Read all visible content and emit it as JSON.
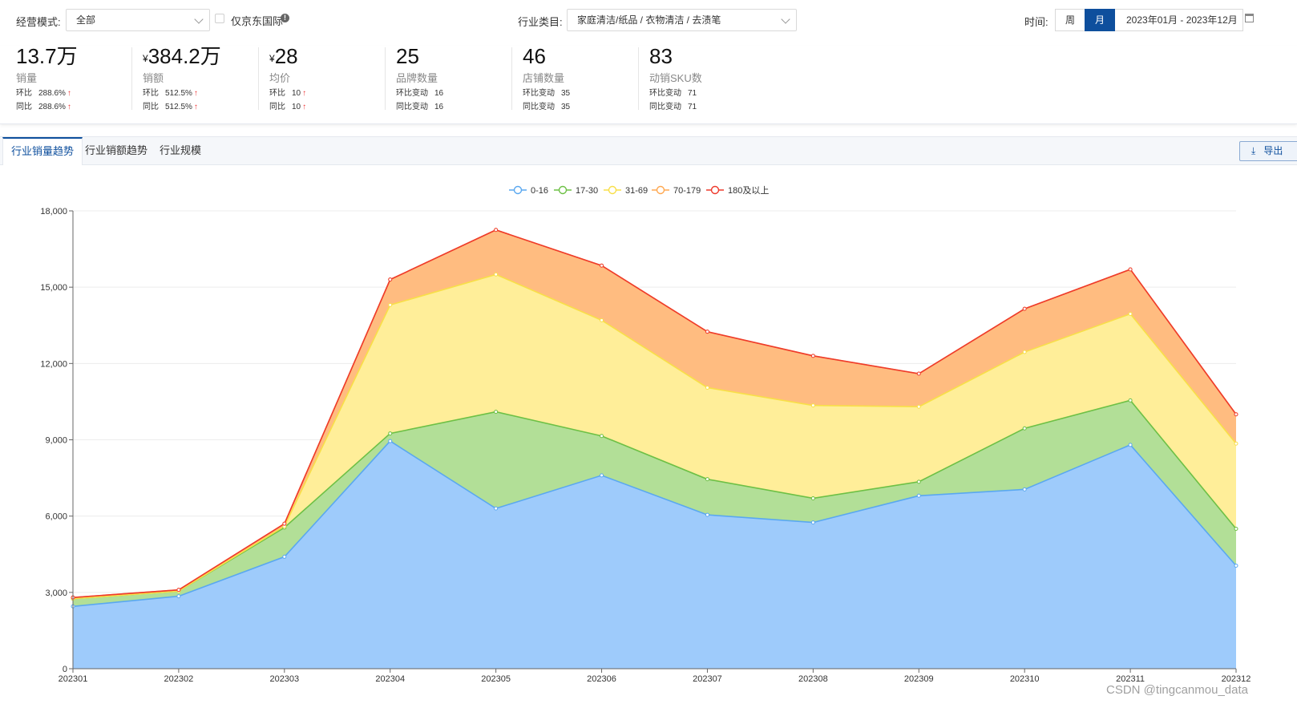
{
  "filters": {
    "mode_label": "经营模式:",
    "mode_value": "全部",
    "jd_intl_label": "仅京东国际",
    "industry_label": "行业类目:",
    "industry_value": "家庭清洁/纸品 / 衣物清洁 / 去渍笔",
    "time_label": "时间:",
    "week_label": "周",
    "month_label": "月",
    "date_range": "2023年01月 - 2023年12月"
  },
  "metrics": [
    {
      "value": "13.7万",
      "currency": "",
      "name": "销量",
      "row1_label": "环比",
      "row1_value": "288.6%",
      "row1_up": "↑",
      "row2_label": "同比",
      "row2_value": "288.6%",
      "row2_up": "↑"
    },
    {
      "value": "384.2万",
      "currency": "¥",
      "name": "销额",
      "row1_label": "环比",
      "row1_value": "512.5%",
      "row1_up": "↑",
      "row2_label": "同比",
      "row2_value": "512.5%",
      "row2_up": "↑"
    },
    {
      "value": "28",
      "currency": "¥",
      "name": "均价",
      "row1_label": "环比",
      "row1_value": "10",
      "row1_up": "↑",
      "row2_label": "同比",
      "row2_value": "10",
      "row2_up": "↑"
    },
    {
      "value": "25",
      "currency": "",
      "name": "品牌数量",
      "row1_label": "环比变动",
      "row1_value": "16",
      "row1_up": "",
      "row2_label": "同比变动",
      "row2_value": "16",
      "row2_up": ""
    },
    {
      "value": "46",
      "currency": "",
      "name": "店铺数量",
      "row1_label": "环比变动",
      "row1_value": "35",
      "row1_up": "",
      "row2_label": "同比变动",
      "row2_value": "35",
      "row2_up": ""
    },
    {
      "value": "83",
      "currency": "",
      "name": "动销SKU数",
      "row1_label": "环比变动",
      "row1_value": "71",
      "row1_up": "",
      "row2_label": "同比变动",
      "row2_value": "71",
      "row2_up": ""
    }
  ],
  "tabs": [
    {
      "label": "行业销量趋势",
      "active": true
    },
    {
      "label": "行业销额趋势",
      "active": false
    },
    {
      "label": "行业规模",
      "active": false
    }
  ],
  "export_label": "导出",
  "watermark": "CSDN @tingcanmou_data",
  "chart_data": {
    "type": "area",
    "stacked": true,
    "title": "",
    "xlabel": "",
    "ylabel": "",
    "ylim": [
      0,
      18000
    ],
    "yticks": [
      "0",
      "3,000",
      "6,000",
      "9,000",
      "12,000",
      "15,000",
      "18,000"
    ],
    "ytick_values": [
      0,
      3000,
      6000,
      9000,
      12000,
      15000,
      18000
    ],
    "grid": true,
    "legend_position": "top-center",
    "categories": [
      "202301",
      "202302",
      "202303",
      "202304",
      "202305",
      "202306",
      "202307",
      "202308",
      "202309",
      "202310",
      "202311",
      "202312"
    ],
    "series": [
      {
        "name": "0-16",
        "color": "#5aa8f0",
        "fill": "#9ecbfb",
        "values": [
          2450,
          2850,
          4400,
          8950,
          6300,
          7600,
          6050,
          5750,
          6800,
          7050,
          8800,
          4050
        ]
      },
      {
        "name": "17-30",
        "color": "#6dc045",
        "fill": "#b2df97",
        "values": [
          300,
          200,
          1150,
          300,
          3800,
          1550,
          1400,
          950,
          550,
          2400,
          1750,
          1450
        ]
      },
      {
        "name": "31-69",
        "color": "#f8df48",
        "fill": "#ffee99",
        "values": [
          0,
          0,
          50,
          5050,
          5400,
          4550,
          3600,
          3650,
          2950,
          3000,
          3400,
          3350
        ]
      },
      {
        "name": "70-179",
        "color": "#ffa850",
        "fill": "#ffbc80",
        "values": [
          50,
          50,
          100,
          1000,
          1750,
          2150,
          2200,
          1950,
          1300,
          1700,
          1750,
          1150
        ]
      },
      {
        "name": "180及以上",
        "color": "#ee3a2c",
        "fill": "#ffbc80",
        "values": [
          0,
          0,
          0,
          0,
          0,
          0,
          0,
          0,
          0,
          0,
          0,
          0
        ]
      }
    ]
  }
}
